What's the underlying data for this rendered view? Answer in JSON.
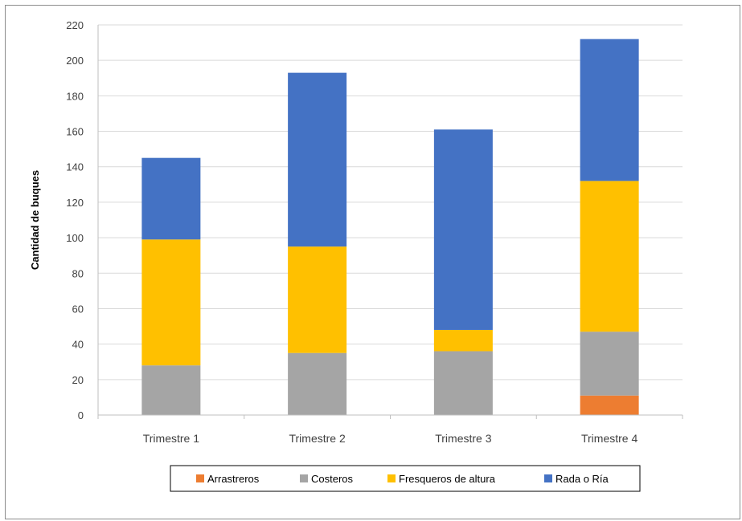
{
  "chart_data": {
    "type": "bar",
    "stacked": true,
    "categories": [
      "Trimestre 1",
      "Trimestre 2",
      "Trimestre 3",
      "Trimestre 4"
    ],
    "series": [
      {
        "name": "Arrastreros",
        "color": "#ED7D31",
        "values": [
          0,
          0,
          0,
          11
        ]
      },
      {
        "name": "Costeros",
        "color": "#A5A5A5",
        "values": [
          28,
          35,
          36,
          36
        ]
      },
      {
        "name": "Fresqueros de altura",
        "color": "#FFC000",
        "values": [
          71,
          60,
          12,
          85
        ]
      },
      {
        "name": "Rada o Ría",
        "color": "#4472C4",
        "values": [
          46,
          98,
          113,
          80
        ]
      }
    ],
    "title": "",
    "xlabel": "",
    "ylabel": "Cantidad de buques",
    "ylim": [
      0,
      220
    ],
    "yticks": [
      0,
      20,
      40,
      60,
      80,
      100,
      120,
      140,
      160,
      180,
      200,
      220
    ],
    "grid": true,
    "legend": "bottom"
  }
}
